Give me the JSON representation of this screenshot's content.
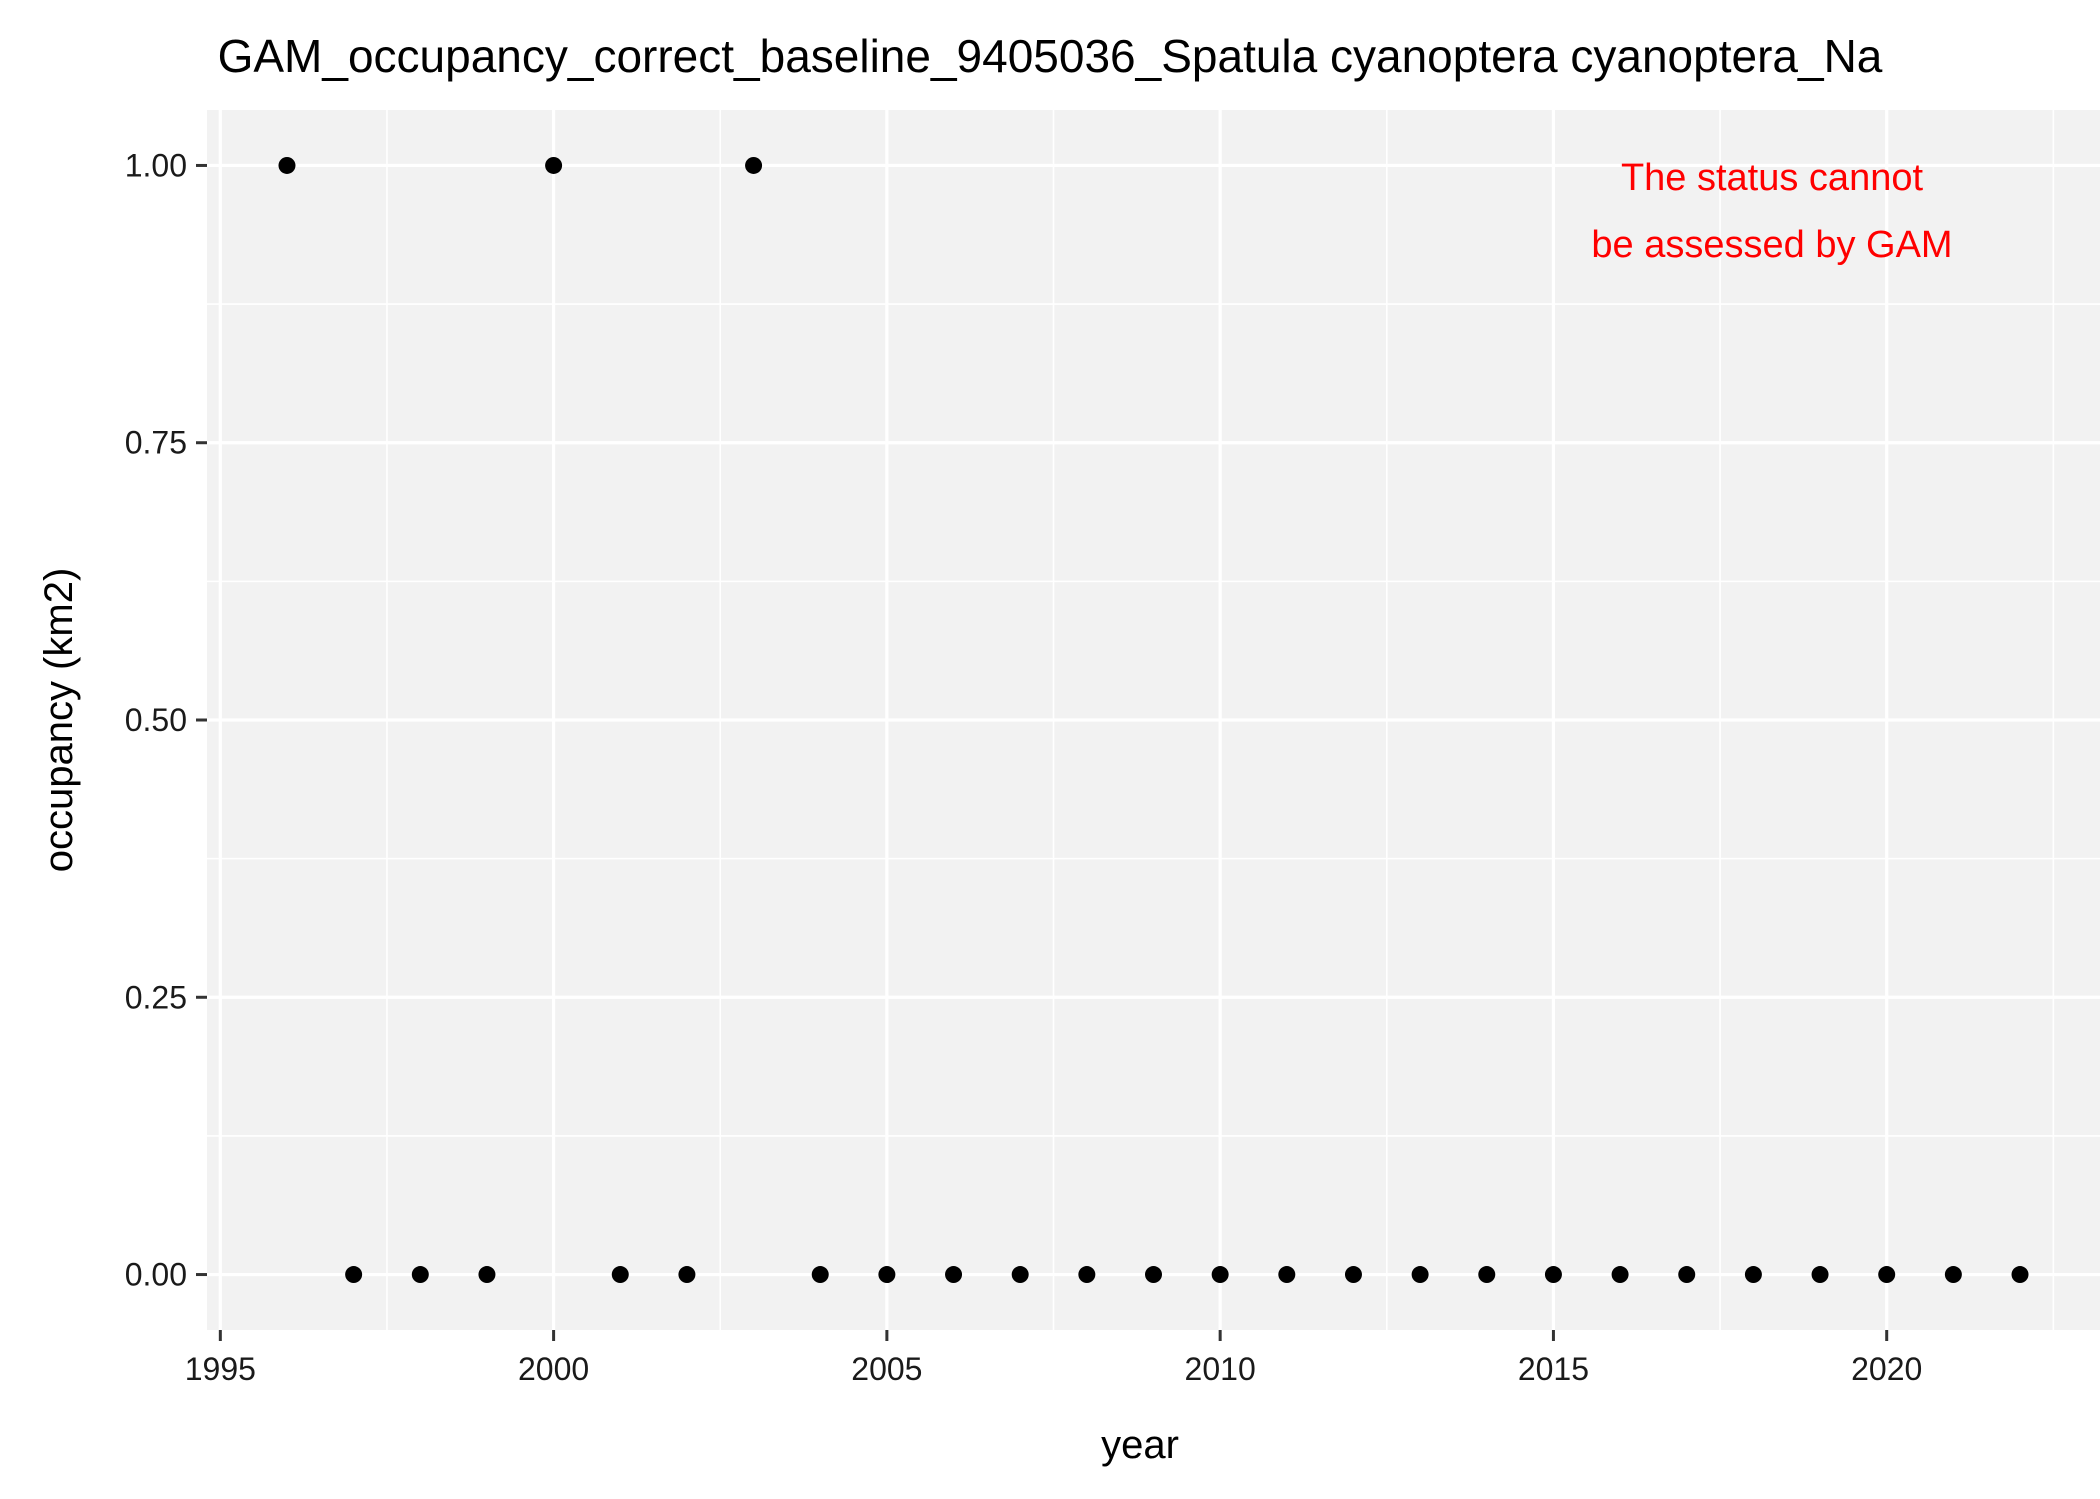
{
  "chart_data": {
    "type": "scatter",
    "title": "GAM_occupancy_correct_baseline_9405036_Spatula cyanoptera cyanoptera_Na",
    "xlabel": "year",
    "ylabel": "occupancy (km2)",
    "xlim": [
      1994.8,
      2023.2
    ],
    "ylim": [
      -0.05,
      1.05
    ],
    "x_ticks": [
      1995,
      2000,
      2005,
      2010,
      2015,
      2020
    ],
    "x_tick_labels": [
      "1995",
      "2000",
      "2005",
      "2010",
      "2015",
      "2020"
    ],
    "y_ticks": [
      0,
      0.25,
      0.5,
      0.75,
      1
    ],
    "y_tick_labels": [
      "0.00",
      "0.25",
      "0.50",
      "0.75",
      "1.00"
    ],
    "grid": true,
    "annotation": {
      "lines": [
        "The status cannot",
        "be assessed by GAM"
      ],
      "color": "#ff0000",
      "placement": "top-right"
    },
    "series": [
      {
        "color": "#000000",
        "points": [
          {
            "x": 1996,
            "y": 1
          },
          {
            "x": 1997,
            "y": 0
          },
          {
            "x": 1998,
            "y": 0
          },
          {
            "x": 1999,
            "y": 0
          },
          {
            "x": 2000,
            "y": 1
          },
          {
            "x": 2001,
            "y": 0
          },
          {
            "x": 2002,
            "y": 0
          },
          {
            "x": 2003,
            "y": 1
          },
          {
            "x": 2004,
            "y": 0
          },
          {
            "x": 2005,
            "y": 0
          },
          {
            "x": 2006,
            "y": 0
          },
          {
            "x": 2007,
            "y": 0
          },
          {
            "x": 2008,
            "y": 0
          },
          {
            "x": 2009,
            "y": 0
          },
          {
            "x": 2010,
            "y": 0
          },
          {
            "x": 2011,
            "y": 0
          },
          {
            "x": 2012,
            "y": 0
          },
          {
            "x": 2013,
            "y": 0
          },
          {
            "x": 2014,
            "y": 0
          },
          {
            "x": 2015,
            "y": 0
          },
          {
            "x": 2016,
            "y": 0
          },
          {
            "x": 2017,
            "y": 0
          },
          {
            "x": 2018,
            "y": 0
          },
          {
            "x": 2019,
            "y": 0
          },
          {
            "x": 2020,
            "y": 0
          },
          {
            "x": 2021,
            "y": 0
          },
          {
            "x": 2022,
            "y": 0
          }
        ]
      }
    ],
    "colors": {
      "panel_background": "#f2f2f2",
      "grid_line": "#ffffff",
      "tick_mark": "#333333",
      "point": "#000000"
    }
  }
}
